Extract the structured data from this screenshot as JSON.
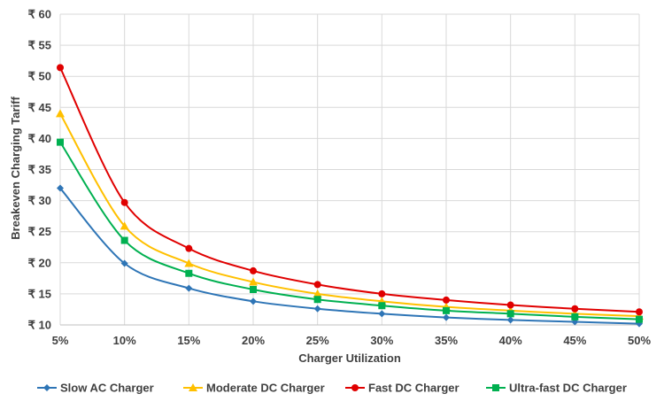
{
  "chart_data": {
    "type": "line",
    "title": "",
    "xlabel": "Charger Utilization",
    "ylabel": "Breakeven Charging Tariff",
    "categories": [
      "5%",
      "10%",
      "15%",
      "20%",
      "25%",
      "30%",
      "35%",
      "40%",
      "45%",
      "50%"
    ],
    "y_ticks": [
      "₹ 10",
      "₹ 15",
      "₹ 20",
      "₹ 25",
      "₹ 30",
      "₹ 35",
      "₹ 40",
      "₹ 45",
      "₹ 50",
      "₹ 55",
      "₹ 60"
    ],
    "ylim": [
      10,
      60
    ],
    "y_step": 5,
    "grid": true,
    "legend_position": "bottom",
    "series": [
      {
        "name": "Slow AC Charger",
        "color": "#2E75B6",
        "marker": "diamond",
        "values": [
          32.0,
          19.9,
          15.9,
          13.8,
          12.6,
          11.8,
          11.2,
          10.8,
          10.5,
          10.2
        ]
      },
      {
        "name": "Moderate DC Charger",
        "color": "#FFC000",
        "marker": "triangle",
        "values": [
          44.0,
          25.9,
          19.9,
          16.9,
          15.0,
          13.8,
          12.9,
          12.3,
          11.8,
          11.4
        ]
      },
      {
        "name": "Fast DC Charger",
        "color": "#E00000",
        "marker": "circle",
        "values": [
          51.4,
          29.7,
          22.3,
          18.7,
          16.5,
          15.0,
          14.0,
          13.2,
          12.6,
          12.1
        ]
      },
      {
        "name": "Ultra-fast DC Charger",
        "color": "#00B050",
        "marker": "square",
        "values": [
          39.4,
          23.6,
          18.3,
          15.7,
          14.1,
          13.1,
          12.3,
          11.8,
          11.3,
          10.9
        ]
      }
    ]
  }
}
